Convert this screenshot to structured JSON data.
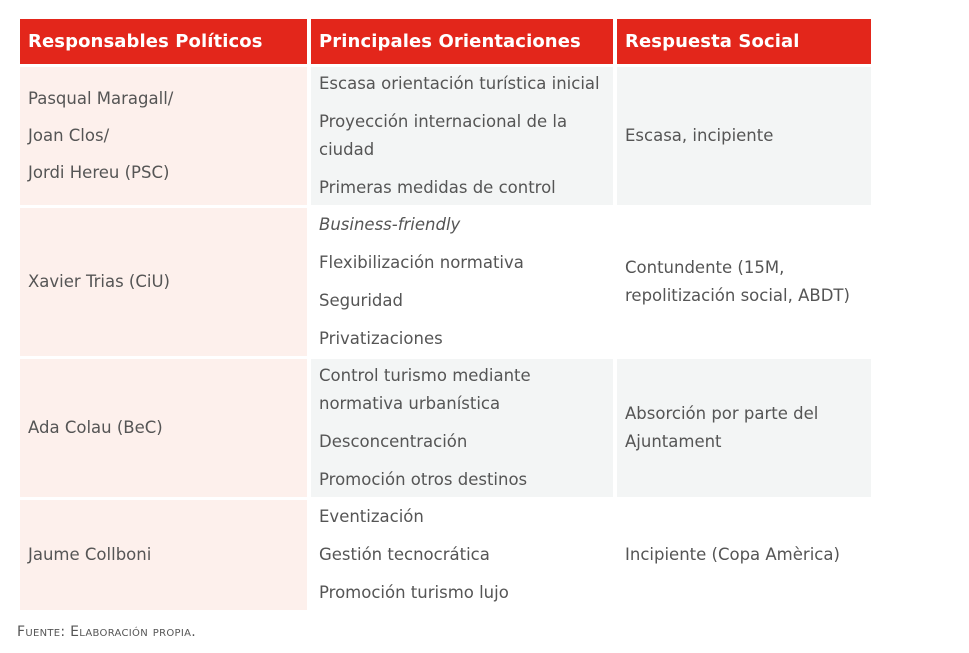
{
  "table": {
    "headers": [
      "Responsables Políticos",
      "Principales Orientaciones",
      "Respuesta Social"
    ],
    "rows": [
      {
        "responsables": [
          "Pasqual Maragall/",
          "Joan Clos/",
          "Jordi Hereu (PSC)"
        ],
        "orientaciones": [
          "Escasa orientación turística inicial",
          "Proyección internacional de la ciudad",
          "Primeras medidas de control"
        ],
        "respuesta": "Escasa, incipiente"
      },
      {
        "responsables": [
          "Xavier Trias (CiU)"
        ],
        "orientaciones": [
          "Business-friendly",
          "Flexibilización normativa",
          "Seguridad",
          "Privatizaciones"
        ],
        "respuesta": "Contundente (15M, repolitización social, ABDT)"
      },
      {
        "responsables": [
          "Ada Colau (BeC)"
        ],
        "orientaciones": [
          "Control turismo mediante normativa urbanística",
          "Desconcentración",
          "Promoción otros destinos"
        ],
        "respuesta": "Absorción por parte del Ajuntament"
      },
      {
        "responsables": [
          "Jaume Collboni"
        ],
        "orientaciones": [
          "Eventización",
          "Gestión tecnocrática",
          "Promoción turismo lujo"
        ],
        "respuesta": "Incipiente (Copa Amèrica)"
      }
    ]
  },
  "source": "Fuente: Elaboración propia.",
  "colors": {
    "header": "#e3261b",
    "col1_bg": "#fdf0ec",
    "alt_bg": "#f3f5f5"
  }
}
